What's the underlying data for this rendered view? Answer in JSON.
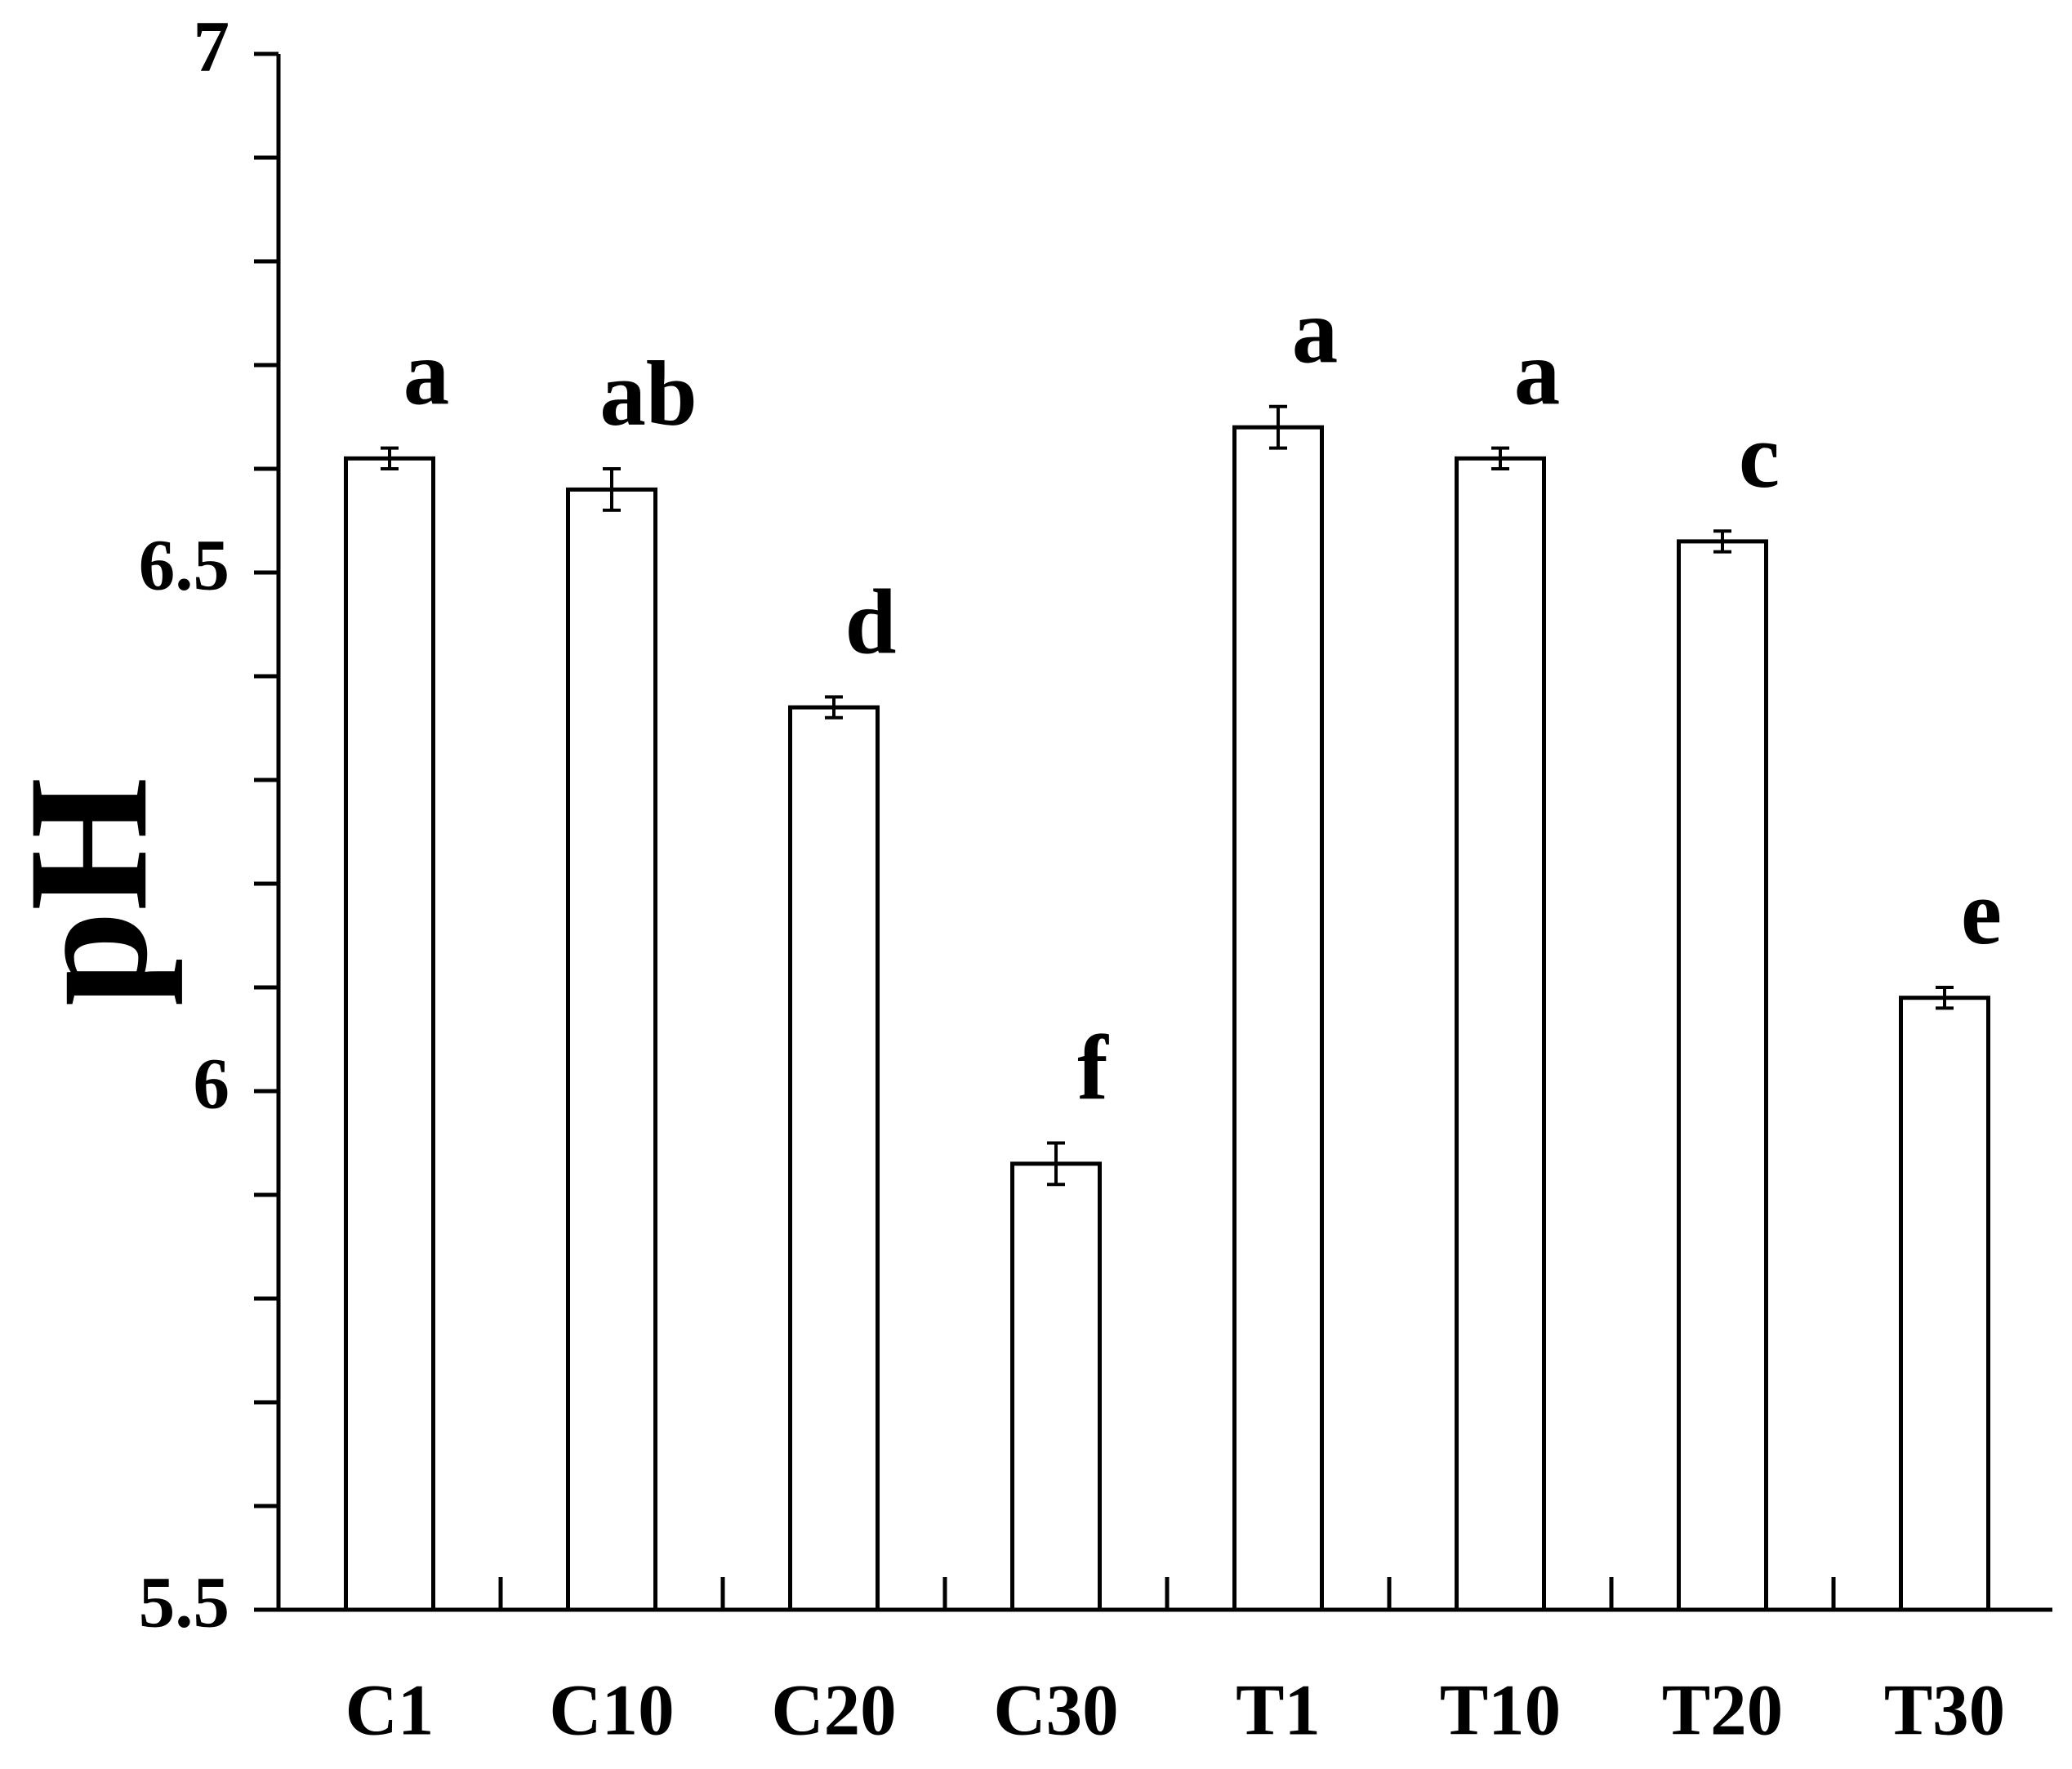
{
  "chart_data": {
    "type": "bar",
    "y_label": "pH",
    "categories": [
      "C1",
      "C10",
      "C20",
      "C30",
      "T1",
      "T10",
      "T20",
      "T30"
    ],
    "values": [
      6.61,
      6.58,
      6.37,
      5.93,
      6.64,
      6.61,
      6.53,
      6.09
    ],
    "errors": [
      0.01,
      0.02,
      0.01,
      0.02,
      0.02,
      0.01,
      0.01,
      0.01
    ],
    "annotations": [
      "a",
      "ab",
      "d",
      "f",
      "a",
      "a",
      "c",
      "e"
    ],
    "color": "#ffffff",
    "edge_color": "#000000",
    "ylim": [
      5.5,
      7
    ],
    "yticks": [
      5.5,
      6,
      6.5,
      7
    ],
    "yminor_ticks": [
      5.6,
      5.7,
      5.8,
      5.9,
      6.1,
      6.2,
      6.3,
      6.4,
      6.6,
      6.7,
      6.8,
      6.9
    ],
    "grid": false
  }
}
